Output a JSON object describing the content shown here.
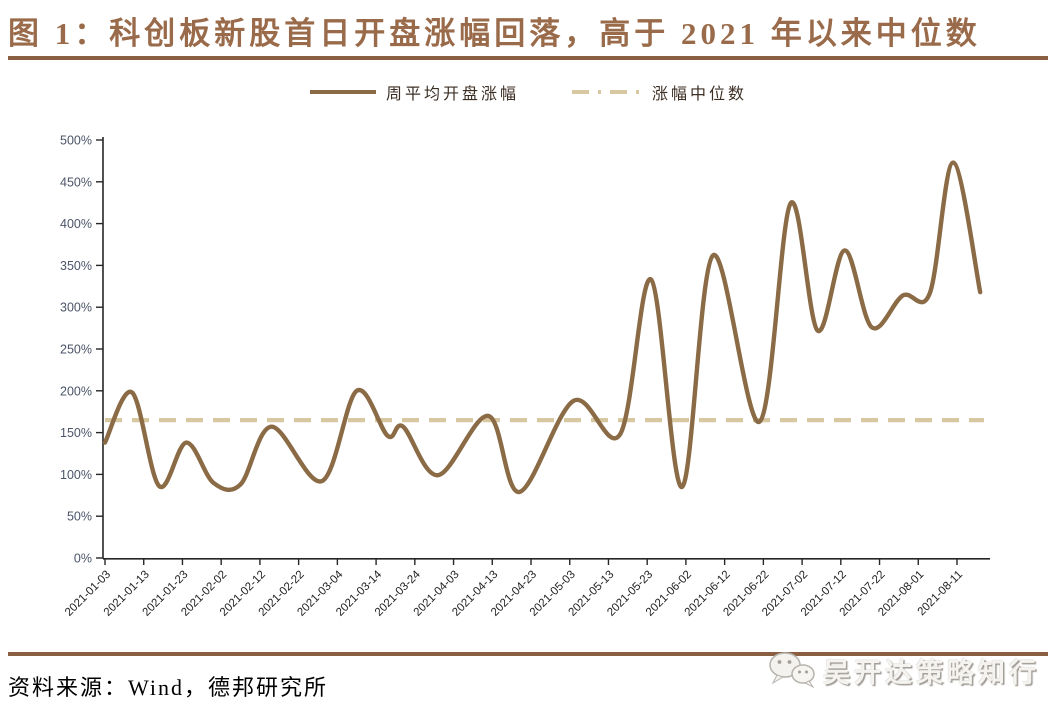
{
  "header": {
    "title": "图 1：科创板新股首日开盘涨幅回落，高于 2021 年以来中位数"
  },
  "legend": {
    "avg_label": "周平均开盘涨幅",
    "median_label": "涨幅中位数"
  },
  "footer": {
    "source": "资料来源：Wind，德邦研究所",
    "watermark": "吴开达策略知行",
    "watermark_icon": "wechat-icon"
  },
  "colors": {
    "title_brown": "#9a6b4a",
    "rule_brown": "#8a5f41",
    "series_line": "#8a6b46",
    "median_line": "#d8c8a2",
    "y_axis_label": "#4b5468",
    "x_axis_label": "#222222",
    "axis_spine": "#262626"
  },
  "chart_data": {
    "type": "line",
    "title": "科创板新股首日开盘涨幅回落，高于 2021 年以来中位数",
    "xlabel": "",
    "ylabel": "",
    "ylim": [
      0,
      500
    ],
    "y_tick_step": 50,
    "y_tick_suffix": "%",
    "grid": false,
    "legend_position": "top-center",
    "x_tick_labels": [
      "2021-01-03",
      "2021-01-13",
      "2021-01-23",
      "2021-02-02",
      "2021-02-12",
      "2021-02-22",
      "2021-03-04",
      "2021-03-14",
      "2021-03-24",
      "2021-04-03",
      "2021-04-13",
      "2021-04-23",
      "2021-05-03",
      "2021-05-13",
      "2021-05-23",
      "2021-06-02",
      "2021-06-12",
      "2021-06-22",
      "2021-07-02",
      "2021-07-12",
      "2021-07-22",
      "2021-08-01",
      "2021-08-11"
    ],
    "series": [
      {
        "name": "周平均开盘涨幅",
        "style": "solid-spline",
        "color": "#8a6b46",
        "points": [
          [
            "2021-01-03",
            138
          ],
          [
            "2021-01-10",
            198
          ],
          [
            "2021-01-17",
            86
          ],
          [
            "2021-01-24",
            138
          ],
          [
            "2021-01-31",
            90
          ],
          [
            "2021-02-07",
            88
          ],
          [
            "2021-02-15",
            157
          ],
          [
            "2021-02-28",
            92
          ],
          [
            "2021-03-09",
            200
          ],
          [
            "2021-03-17",
            146
          ],
          [
            "2021-03-21",
            157
          ],
          [
            "2021-03-30",
            99
          ],
          [
            "2021-04-12",
            170
          ],
          [
            "2021-04-20",
            79
          ],
          [
            "2021-05-04",
            188
          ],
          [
            "2021-05-16",
            148
          ],
          [
            "2021-05-24",
            333
          ],
          [
            "2021-06-01",
            85
          ],
          [
            "2021-06-09",
            362
          ],
          [
            "2021-06-21",
            163
          ],
          [
            "2021-06-29",
            424
          ],
          [
            "2021-07-06",
            272
          ],
          [
            "2021-07-13",
            368
          ],
          [
            "2021-07-20",
            276
          ],
          [
            "2021-07-28",
            314
          ],
          [
            "2021-08-04",
            317
          ],
          [
            "2021-08-10",
            473
          ],
          [
            "2021-08-17",
            318
          ]
        ]
      },
      {
        "name": "涨幅中位数",
        "style": "dashed-constant",
        "color": "#d8c8a2",
        "value": 165
      }
    ]
  }
}
